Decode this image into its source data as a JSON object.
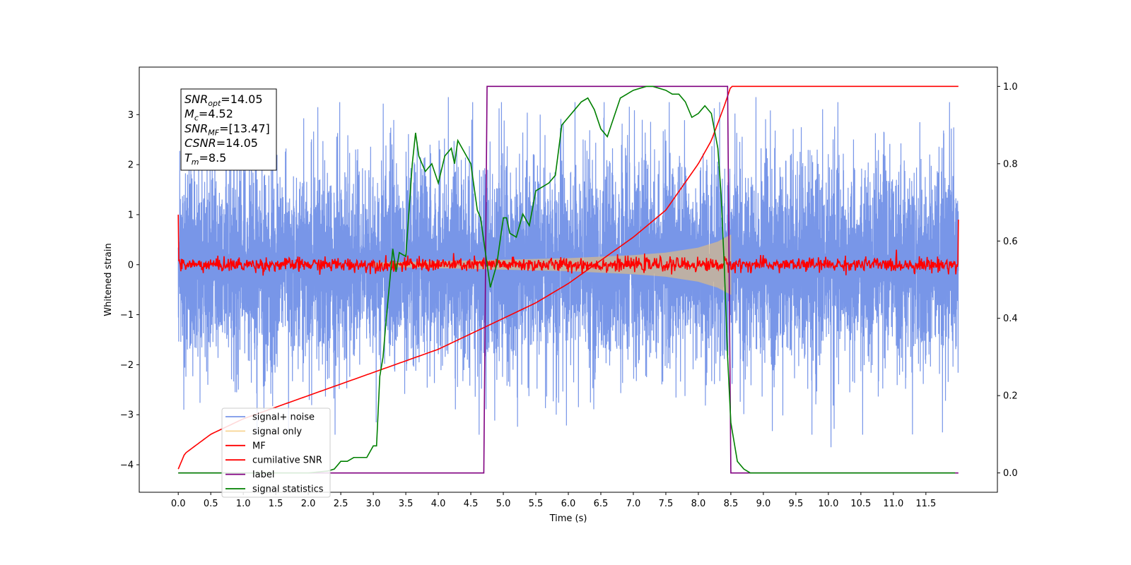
{
  "chart_data": {
    "type": "line",
    "xlabel": "Time (s)",
    "ylabel": "Whitened strain",
    "xlim": [
      -0.6,
      12.6
    ],
    "ylim": [
      -4.55,
      3.95
    ],
    "y2lim": [
      -0.05,
      1.05
    ],
    "x_ticks": [
      0.0,
      0.5,
      1.0,
      1.5,
      2.0,
      2.5,
      3.0,
      3.5,
      4.0,
      4.5,
      5.0,
      5.5,
      6.0,
      6.5,
      7.0,
      7.5,
      8.0,
      8.5,
      9.0,
      9.5,
      10.0,
      10.5,
      11.0,
      11.5
    ],
    "x_tick_labels": [
      "0.0",
      "0.5",
      "1.0",
      "1.5",
      "2.0",
      "2.5",
      "3.0",
      "3.5",
      "4.0",
      "4.5",
      "5.0",
      "5.5",
      "6.0",
      "6.5",
      "7.0",
      "7.5",
      "8.0",
      "8.5",
      "9.0",
      "9.5",
      "10.0",
      "10.5",
      "11.0",
      "11.5"
    ],
    "y_ticks": [
      -4,
      -3,
      -2,
      -1,
      0,
      1,
      2,
      3
    ],
    "y_tick_labels": [
      "−4",
      "−3",
      "−2",
      "−1",
      "0",
      "1",
      "2",
      "3"
    ],
    "y2_ticks": [
      0.0,
      0.2,
      0.4,
      0.6,
      0.8,
      1.0
    ],
    "y2_tick_labels": [
      "0.0",
      "0.2",
      "0.4",
      "0.6",
      "0.8",
      "1.0"
    ],
    "grid": false,
    "legend_position": "lower-left",
    "annotation": [
      {
        "sym": "SNR",
        "sub": "opt",
        "val": "=14.05"
      },
      {
        "sym": "M",
        "sub": "c",
        "val": "=4.52"
      },
      {
        "sym": "SNR",
        "sub": "MF",
        "val": "=[13.47]"
      },
      {
        "sym": "CSNR",
        "sub": "",
        "val": "=14.05"
      },
      {
        "sym": "T",
        "sub": "m",
        "val": "=8.5"
      }
    ],
    "series": [
      {
        "name": "signal+ noise",
        "color": "#7896e8",
        "axis": "left",
        "kind": "noise",
        "x_range": [
          0.0,
          12.0
        ],
        "amplitude": 1.3,
        "peak_extremes": [
          3.35,
          -3.65
        ]
      },
      {
        "name": "signal only",
        "color": "#f5c66e",
        "axis": "left",
        "kind": "chirp",
        "x_range": [
          3.0,
          8.5
        ],
        "envelope": {
          "x": [
            3.0,
            4.0,
            5.0,
            6.0,
            7.0,
            7.5,
            8.0,
            8.3,
            8.5
          ],
          "y": [
            0.04,
            0.07,
            0.1,
            0.13,
            0.19,
            0.24,
            0.34,
            0.46,
            0.6
          ]
        }
      },
      {
        "name": "MF",
        "color": "#ff0000",
        "axis": "left",
        "kind": "mf",
        "x_range": [
          0.0,
          12.0
        ],
        "baseline": 0.0,
        "noise_amplitude": 0.07,
        "edge_values": [
          1.0,
          0.9
        ]
      },
      {
        "name": "cumilative SNR",
        "color": "#ff0000",
        "axis": "right",
        "x": [
          0.0,
          0.1,
          0.5,
          1.0,
          1.5,
          2.0,
          2.5,
          3.0,
          3.5,
          4.0,
          4.5,
          5.0,
          5.5,
          6.0,
          6.5,
          7.0,
          7.5,
          8.0,
          8.2,
          8.4,
          8.5,
          12.0
        ],
        "values": [
          0.01,
          0.05,
          0.1,
          0.14,
          0.17,
          0.2,
          0.23,
          0.26,
          0.29,
          0.32,
          0.36,
          0.4,
          0.44,
          0.49,
          0.55,
          0.61,
          0.68,
          0.8,
          0.86,
          0.95,
          1.0,
          1.0
        ]
      },
      {
        "name": "label",
        "color": "#800080",
        "axis": "right",
        "x": [
          0.0,
          4.7,
          4.75,
          8.45,
          8.5,
          12.0
        ],
        "values": [
          0.0,
          0.0,
          1.0,
          1.0,
          0.0,
          0.0
        ]
      },
      {
        "name": "signal statistics",
        "color": "#008000",
        "axis": "right",
        "x": [
          0.0,
          2.0,
          2.3,
          2.4,
          2.5,
          2.6,
          2.7,
          2.8,
          2.9,
          3.0,
          3.05,
          3.1,
          3.15,
          3.2,
          3.3,
          3.35,
          3.4,
          3.5,
          3.6,
          3.65,
          3.7,
          3.8,
          3.9,
          4.0,
          4.1,
          4.2,
          4.25,
          4.3,
          4.4,
          4.5,
          4.6,
          4.65,
          4.7,
          4.8,
          4.9,
          5.0,
          5.05,
          5.1,
          5.2,
          5.3,
          5.4,
          5.5,
          5.6,
          5.7,
          5.8,
          5.9,
          6.0,
          6.1,
          6.2,
          6.3,
          6.4,
          6.5,
          6.6,
          6.7,
          6.8,
          7.0,
          7.2,
          7.3,
          7.5,
          7.6,
          7.7,
          7.8,
          7.9,
          8.0,
          8.1,
          8.2,
          8.3,
          8.35,
          8.4,
          8.45,
          8.5,
          8.6,
          8.7,
          8.8,
          9.0,
          9.5,
          10.0,
          11.0,
          11.5,
          11.95
        ],
        "values": [
          0.0,
          0.0,
          0.005,
          0.01,
          0.03,
          0.03,
          0.04,
          0.04,
          0.04,
          0.07,
          0.07,
          0.25,
          0.3,
          0.4,
          0.58,
          0.52,
          0.57,
          0.56,
          0.8,
          0.88,
          0.82,
          0.78,
          0.8,
          0.75,
          0.82,
          0.84,
          0.8,
          0.86,
          0.83,
          0.8,
          0.68,
          0.66,
          0.6,
          0.48,
          0.54,
          0.66,
          0.66,
          0.62,
          0.61,
          0.67,
          0.64,
          0.73,
          0.74,
          0.75,
          0.77,
          0.9,
          0.92,
          0.94,
          0.96,
          0.97,
          0.94,
          0.89,
          0.87,
          0.92,
          0.97,
          0.99,
          1.0,
          1.0,
          0.99,
          0.98,
          0.98,
          0.96,
          0.92,
          0.93,
          0.95,
          0.93,
          0.84,
          0.72,
          0.53,
          0.3,
          0.13,
          0.03,
          0.01,
          0.0,
          0.0,
          0.0,
          0.0,
          0.0,
          0.0,
          0.0
        ]
      }
    ]
  }
}
